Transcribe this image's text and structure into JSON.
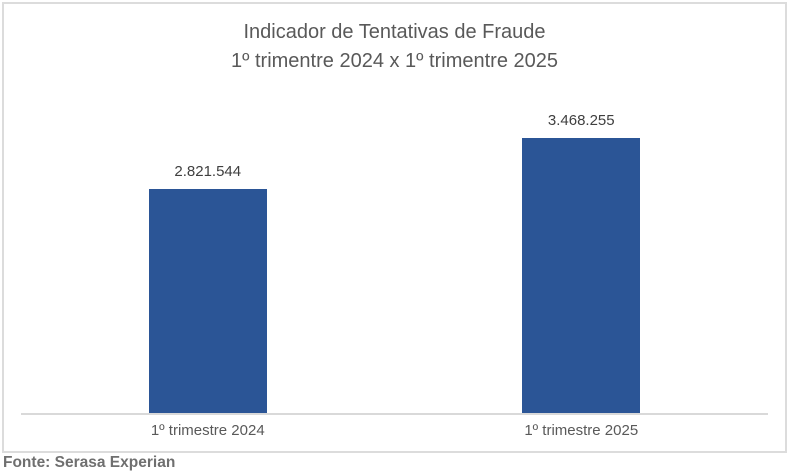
{
  "chart_data": {
    "type": "bar",
    "title": "Indicador de Tentativas de Fraude",
    "subtitle": "1º trimentre 2024 x 1º trimentre 2025",
    "categories": [
      "1º trimestre 2024",
      "1º trimestre 2025"
    ],
    "values": [
      2821544,
      3468255
    ],
    "value_labels": [
      "2.821.544",
      "3.468.255"
    ],
    "xlabel": "",
    "ylabel": "",
    "ylim": [
      0,
      3950000
    ],
    "grid": false,
    "legend_position": "none",
    "bar_color": "#2b5596"
  },
  "footer": {
    "source": "Fonte: Serasa Experian"
  },
  "colors": {
    "bar": "#2b5596",
    "title_text": "#595959",
    "value_label_text": "#3f3f3f",
    "category_text": "#595959",
    "footer_text": "#6f6f6f",
    "axis_line": "#d9d9d9",
    "chart_border": "#dcdcdc",
    "background": "#ffffff"
  }
}
